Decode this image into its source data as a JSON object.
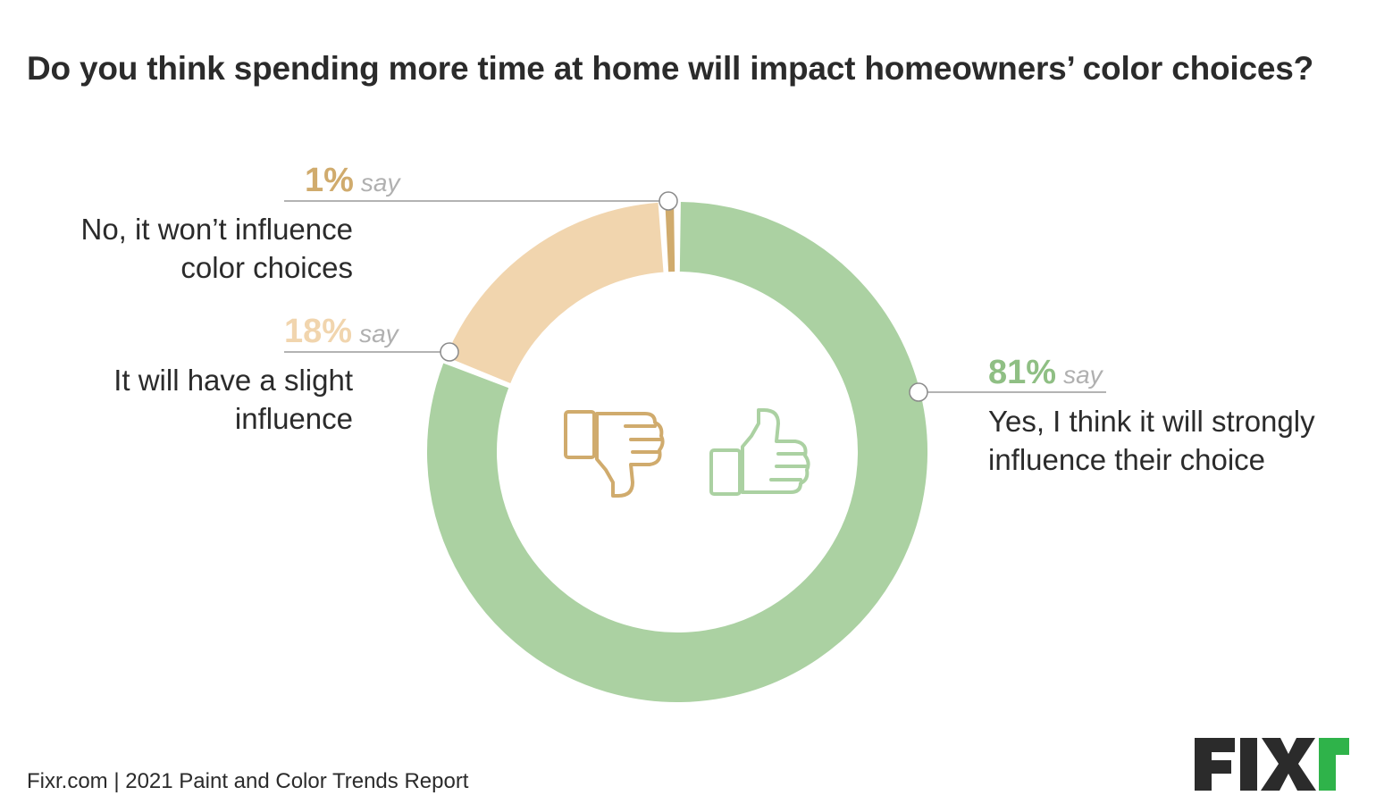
{
  "title": "Do you think spending more time at home will impact homeowners’ color choices?",
  "footer": "Fixr.com | 2021 Paint and Color Trends Report",
  "brand": {
    "logo_text": "FIXR",
    "logo_color": "#2b2b2b",
    "accent_color": "#2fb34a"
  },
  "icons": [
    "thumbs-down-icon",
    "thumbs-up-icon"
  ],
  "chart_data": {
    "type": "pie",
    "donut": true,
    "title": "Do you think spending more time at home will impact homeowners’ color choices?",
    "slices": [
      {
        "label_line1": "Yes, I think it will strongly",
        "label_line2": "influence their choice",
        "value": 81,
        "display": "81%",
        "say": "say",
        "color": "#abd1a2",
        "text_color": "#8fbf84"
      },
      {
        "label_line1": "It will have a slight",
        "label_line2": "influence",
        "value": 18,
        "display": "18%",
        "say": "say",
        "color": "#f1d5ae",
        "text_color": "#f1d5ae"
      },
      {
        "label_line1": "No, it won’t influence",
        "label_line2": "color choices",
        "value": 1,
        "display": "1%",
        "say": "say",
        "color": "#d0ab6d",
        "text_color": "#d0ab6d"
      }
    ]
  }
}
